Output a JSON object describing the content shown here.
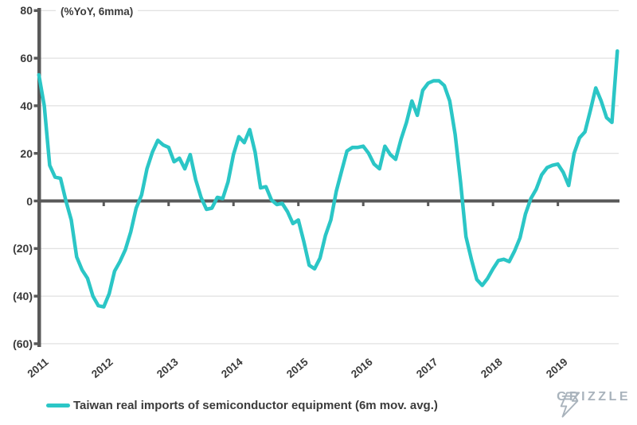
{
  "axis_note": "(%YoY, 6mma)",
  "legend": {
    "label": "Taiwan real imports of semiconductor equipment (6m mov. avg.)"
  },
  "branding": {
    "name": "GRIZZLE"
  },
  "colors": {
    "line": "#2bc6c6",
    "axis": "#595959",
    "grid": "#d9d9d9",
    "text": "#3b3b3b",
    "logo": "#a9b3bc"
  },
  "chart_data": {
    "type": "line",
    "title": "",
    "ylabel": "(%YoY, 6mma)",
    "xlabel": "",
    "ylim": [
      -60,
      80
    ],
    "grid": true,
    "legend_position": "bottom",
    "series_name": "Taiwan real imports of semiconductor equipment (6m mov. avg.)",
    "x_start": "2011-01",
    "x_freq": "monthly",
    "y_ticks": [
      {
        "value": 80,
        "label": "80"
      },
      {
        "value": 60,
        "label": "60"
      },
      {
        "value": 40,
        "label": "40"
      },
      {
        "value": 20,
        "label": "20"
      },
      {
        "value": 0,
        "label": "0"
      },
      {
        "value": -20,
        "label": "(20)"
      },
      {
        "value": -40,
        "label": "(40)"
      },
      {
        "value": -60,
        "label": "(60)"
      }
    ],
    "x_ticks": [
      {
        "month_index": 0,
        "label": "2011"
      },
      {
        "month_index": 12,
        "label": "2012"
      },
      {
        "month_index": 24,
        "label": "2013"
      },
      {
        "month_index": 36,
        "label": "2014"
      },
      {
        "month_index": 48,
        "label": "2015"
      },
      {
        "month_index": 60,
        "label": "2016"
      },
      {
        "month_index": 72,
        "label": "2017"
      },
      {
        "month_index": 84,
        "label": "2018"
      },
      {
        "month_index": 96,
        "label": "2019"
      }
    ],
    "values": [
      53,
      40,
      15,
      10,
      9.5,
      0,
      -8,
      -23.5,
      -29,
      -32.5,
      -40,
      -44,
      -44.5,
      -39,
      -29.5,
      -25.5,
      -20.5,
      -13,
      -3,
      2.5,
      13.5,
      20.5,
      25.5,
      23.5,
      22.5,
      16.5,
      18,
      13.5,
      19.5,
      9,
      1.5,
      -3.5,
      -3,
      1.5,
      1,
      8,
      19.5,
      27,
      24.5,
      30,
      20.5,
      5.5,
      6,
      0.5,
      -1.5,
      -1,
      -4.5,
      -9.5,
      -8,
      -17,
      -27,
      -28.5,
      -24,
      -14.5,
      -8,
      4,
      12.5,
      21,
      22.5,
      22.5,
      23,
      20,
      15.5,
      13.5,
      23,
      19.5,
      17.5,
      26,
      33,
      42,
      36,
      46.5,
      49.5,
      50.5,
      50.5,
      48.5,
      42,
      28,
      8,
      -15,
      -24.5,
      -33,
      -35.5,
      -32.5,
      -28.5,
      -25,
      -24.5,
      -25.5,
      -21,
      -15.5,
      -5.5,
      1,
      5,
      11,
      14,
      15,
      15.5,
      12,
      6.5,
      20,
      26.5,
      29,
      38,
      47.5,
      42,
      35,
      33,
      63
    ]
  }
}
